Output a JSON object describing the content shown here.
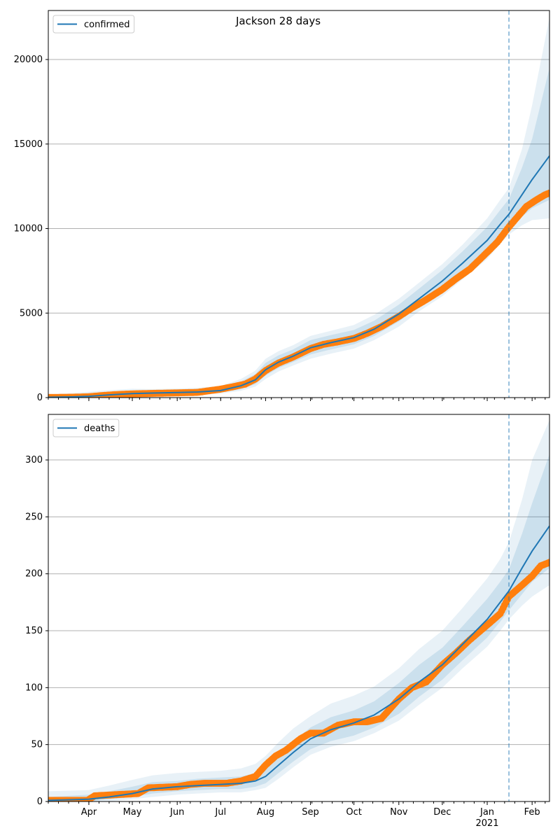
{
  "title": "Jackson 28 days",
  "colors": {
    "fit": "#1f77b4",
    "observed": "#ff7f0e",
    "band": "#1f77b4",
    "grid": "#b0b0b0"
  },
  "x_axis": {
    "start": "2020-03-04",
    "end": "2021-02-13",
    "month_ticks": [
      {
        "date": "2020-04-01",
        "label": "Apr"
      },
      {
        "date": "2020-05-01",
        "label": "May"
      },
      {
        "date": "2020-06-01",
        "label": "Jun"
      },
      {
        "date": "2020-07-01",
        "label": "Jul"
      },
      {
        "date": "2020-08-01",
        "label": "Aug"
      },
      {
        "date": "2020-09-01",
        "label": "Sep"
      },
      {
        "date": "2020-10-01",
        "label": "Oct"
      },
      {
        "date": "2020-11-01",
        "label": "Nov"
      },
      {
        "date": "2020-12-01",
        "label": "Dec"
      },
      {
        "date": "2021-01-01",
        "label": "Jan"
      },
      {
        "date": "2021-02-01",
        "label": "Feb"
      }
    ],
    "year_label": "2021",
    "forecast_start": "2021-01-16"
  },
  "chart_data": [
    {
      "type": "line",
      "legend": "confirmed",
      "legend_position": "top-left",
      "grid": "y",
      "ylim": [
        0,
        22900
      ],
      "yticks": [
        0,
        5000,
        10000,
        15000,
        20000
      ],
      "fit": {
        "x": [
          "2020-03-04",
          "2020-03-20",
          "2020-04-01",
          "2020-04-15",
          "2020-05-01",
          "2020-05-15",
          "2020-06-01",
          "2020-06-15",
          "2020-07-01",
          "2020-07-15",
          "2020-07-25",
          "2020-08-01",
          "2020-08-10",
          "2020-08-20",
          "2020-09-01",
          "2020-09-15",
          "2020-10-01",
          "2020-10-15",
          "2020-11-01",
          "2020-11-15",
          "2020-12-01",
          "2020-12-15",
          "2021-01-01",
          "2021-01-10",
          "2021-01-16",
          "2021-01-25",
          "2021-02-01",
          "2021-02-13"
        ],
        "y": [
          20,
          40,
          80,
          160,
          240,
          270,
          300,
          330,
          420,
          700,
          1050,
          1650,
          2100,
          2450,
          2950,
          3250,
          3550,
          4050,
          4950,
          5850,
          6900,
          7950,
          9300,
          10250,
          10850,
          12000,
          12900,
          14300
        ]
      },
      "bands": [
        {
          "lower": [
            0,
            0,
            0,
            20,
            80,
            150,
            180,
            220,
            300,
            500,
            800,
            1300,
            1750,
            2100,
            2550,
            2850,
            3150,
            3650,
            4500,
            5400,
            6350,
            7350,
            8650,
            9500,
            10050,
            10700,
            11200,
            11700
          ],
          "upper": [
            120,
            180,
            250,
            340,
            420,
            420,
            450,
            490,
            590,
            950,
            1400,
            2050,
            2500,
            2850,
            3400,
            3700,
            4000,
            4550,
            5500,
            6450,
            7550,
            8650,
            10100,
            11100,
            11750,
            13600,
            15300,
            19500
          ]
        },
        {
          "lower": [
            0,
            0,
            0,
            0,
            20,
            80,
            120,
            160,
            240,
            400,
            650,
            1100,
            1550,
            1900,
            2300,
            2600,
            2900,
            3400,
            4200,
            5100,
            6000,
            7000,
            8200,
            9100,
            9650,
            10200,
            10500,
            10600
          ],
          "upper": [
            200,
            260,
            340,
            440,
            520,
            500,
            540,
            580,
            690,
            1100,
            1600,
            2300,
            2750,
            3100,
            3650,
            3950,
            4300,
            4900,
            5850,
            6800,
            7900,
            9050,
            10600,
            11700,
            12400,
            14700,
            17300,
            22500
          ]
        }
      ],
      "observed": {
        "x": [
          "2020-03-04",
          "2020-03-20",
          "2020-04-01",
          "2020-04-10",
          "2020-04-20",
          "2020-05-01",
          "2020-05-15",
          "2020-06-01",
          "2020-06-15",
          "2020-07-01",
          "2020-07-10",
          "2020-07-18",
          "2020-07-25",
          "2020-08-01",
          "2020-08-10",
          "2020-08-20",
          "2020-09-01",
          "2020-09-10",
          "2020-09-20",
          "2020-10-01",
          "2020-10-10",
          "2020-10-20",
          "2020-11-01",
          "2020-11-10",
          "2020-11-20",
          "2020-12-01",
          "2020-12-10",
          "2020-12-20",
          "2021-01-01",
          "2021-01-08",
          "2021-01-16",
          "2021-01-22",
          "2021-01-28",
          "2021-02-04",
          "2021-02-10",
          "2021-02-13"
        ],
        "y": [
          10,
          20,
          50,
          120,
          180,
          220,
          250,
          280,
          310,
          500,
          650,
          800,
          1100,
          1600,
          2050,
          2400,
          2900,
          3150,
          3300,
          3500,
          3800,
          4200,
          4800,
          5300,
          5800,
          6400,
          7000,
          7600,
          8600,
          9200,
          10100,
          10700,
          11300,
          11700,
          12000,
          12100
        ]
      }
    },
    {
      "type": "line",
      "legend": "deaths",
      "legend_position": "top-left",
      "grid": "y",
      "ylim": [
        0,
        340
      ],
      "yticks": [
        0,
        50,
        100,
        150,
        200,
        250,
        300
      ],
      "fit": {
        "x": [
          "2020-03-04",
          "2020-04-01",
          "2020-04-15",
          "2020-05-01",
          "2020-05-15",
          "2020-06-01",
          "2020-06-15",
          "2020-07-01",
          "2020-07-15",
          "2020-07-25",
          "2020-08-01",
          "2020-08-10",
          "2020-08-20",
          "2020-09-01",
          "2020-09-15",
          "2020-10-01",
          "2020-10-15",
          "2020-11-01",
          "2020-11-15",
          "2020-12-01",
          "2020-12-15",
          "2021-01-01",
          "2021-01-10",
          "2021-01-16",
          "2021-01-25",
          "2021-02-01",
          "2021-02-13"
        ],
        "y": [
          1,
          2,
          4,
          7,
          11,
          13,
          14,
          15,
          16,
          18,
          22,
          32,
          43,
          55,
          63,
          69,
          76,
          90,
          105,
          120,
          138,
          160,
          175,
          185,
          205,
          220,
          242
        ]
      },
      "bands": [
        {
          "lower": [
            0,
            0,
            2,
            4,
            7,
            9,
            10,
            11,
            11,
            13,
            16,
            25,
            35,
            46,
            53,
            58,
            65,
            77,
            92,
            107,
            124,
            144,
            158,
            168,
            182,
            193,
            205
          ],
          "upper": [
            4,
            6,
            9,
            13,
            17,
            18,
            20,
            21,
            22,
            25,
            30,
            41,
            53,
            65,
            74,
            80,
            88,
            104,
            120,
            135,
            154,
            178,
            193,
            204,
            235,
            262,
            305
          ]
        },
        {
          "lower": [
            0,
            0,
            0,
            2,
            4,
            6,
            7,
            8,
            8,
            10,
            12,
            20,
            30,
            41,
            48,
            53,
            60,
            71,
            85,
            100,
            117,
            136,
            150,
            160,
            172,
            180,
            190
          ],
          "upper": [
            9,
            10,
            14,
            19,
            23,
            25,
            26,
            27,
            29,
            33,
            40,
            52,
            64,
            75,
            86,
            93,
            101,
            117,
            134,
            150,
            170,
            196,
            213,
            228,
            265,
            300,
            335
          ]
        }
      ],
      "observed": {
        "x": [
          "2020-03-04",
          "2020-03-31",
          "2020-04-05",
          "2020-04-20",
          "2020-05-05",
          "2020-05-12",
          "2020-06-01",
          "2020-06-10",
          "2020-06-20",
          "2020-07-05",
          "2020-07-15",
          "2020-07-25",
          "2020-08-01",
          "2020-08-08",
          "2020-08-15",
          "2020-08-25",
          "2020-09-01",
          "2020-09-10",
          "2020-09-20",
          "2020-10-01",
          "2020-10-10",
          "2020-10-20",
          "2020-11-01",
          "2020-11-10",
          "2020-11-20",
          "2020-12-01",
          "2020-12-10",
          "2020-12-20",
          "2021-01-01",
          "2021-01-10",
          "2021-01-16",
          "2021-01-25",
          "2021-02-01",
          "2021-02-07",
          "2021-02-13"
        ],
        "y": [
          1,
          1,
          5,
          6,
          7,
          12,
          13,
          15,
          16,
          16,
          18,
          22,
          32,
          40,
          45,
          55,
          60,
          60,
          67,
          70,
          70,
          73,
          90,
          100,
          105,
          120,
          130,
          142,
          155,
          165,
          180,
          190,
          198,
          207,
          210
        ]
      }
    }
  ]
}
